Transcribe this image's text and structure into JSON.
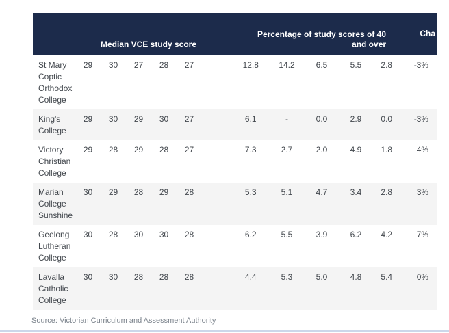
{
  "chart_data": {
    "type": "table",
    "header": {
      "median_group_label": "Median VCE study score",
      "pct_group_label_line1": "Percentage of study scores of 40",
      "pct_group_label_line2": "and over",
      "change_label_visible": "Cha"
    },
    "rows": [
      {
        "school": "St Mary Coptic Orthodox College",
        "median": [
          "29",
          "30",
          "27",
          "28",
          "27"
        ],
        "pct": [
          "12.8",
          "14.2",
          "6.5",
          "5.5",
          "2.8"
        ],
        "change": "-3%"
      },
      {
        "school": "King's College",
        "median": [
          "29",
          "30",
          "29",
          "30",
          "27"
        ],
        "pct": [
          "6.1",
          "-",
          "0.0",
          "2.9",
          "0.0"
        ],
        "change": "-3%"
      },
      {
        "school": "Victory Christian College",
        "median": [
          "29",
          "28",
          "29",
          "28",
          "27"
        ],
        "pct": [
          "7.3",
          "2.7",
          "2.0",
          "4.9",
          "1.8"
        ],
        "change": "4%"
      },
      {
        "school": "Marian College Sunshine",
        "median": [
          "30",
          "29",
          "28",
          "29",
          "28"
        ],
        "pct": [
          "5.3",
          "5.1",
          "4.7",
          "3.4",
          "2.8"
        ],
        "change": "3%"
      },
      {
        "school": "Geelong Lutheran College",
        "median": [
          "30",
          "28",
          "30",
          "30",
          "28"
        ],
        "pct": [
          "6.2",
          "5.5",
          "3.9",
          "6.2",
          "4.2"
        ],
        "change": "7%"
      },
      {
        "school": "Lavalla Catholic College",
        "median": [
          "30",
          "30",
          "28",
          "28",
          "28"
        ],
        "pct": [
          "4.4",
          "5.3",
          "5.0",
          "4.8",
          "5.4"
        ],
        "change": "0%"
      }
    ],
    "source": "Source: Victorian Curriculum and Assessment Authority"
  },
  "colors": {
    "header_bg": "#1c2b4b",
    "row_alt": "#f4f4f4",
    "divider": "#4a4a4a",
    "body_text": "#43484e",
    "source_text": "#7b838c",
    "bottom_line": "#ccd7ea"
  }
}
